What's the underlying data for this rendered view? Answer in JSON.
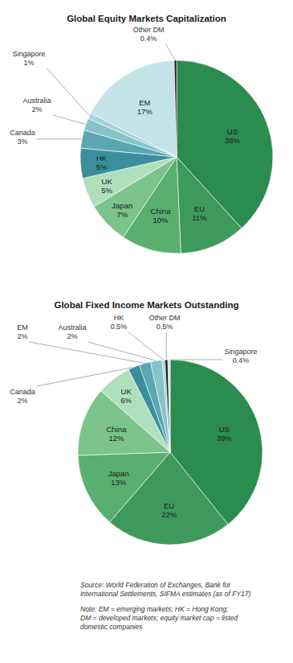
{
  "chart_data": [
    {
      "type": "pie",
      "title": "Global Equity Markets Capitalization",
      "categories": [
        "US",
        "EU",
        "China",
        "Japan",
        "UK",
        "HK",
        "Canada",
        "Australia",
        "Singapore",
        "EM",
        "Other DM"
      ],
      "values": [
        38,
        11,
        10,
        7,
        5,
        5,
        3,
        2,
        1,
        17,
        0.4
      ],
      "value_labels": [
        "38%",
        "11%",
        "10%",
        "7%",
        "5%",
        "5%",
        "3%",
        "2%",
        "1%",
        "17%",
        "0.4%"
      ],
      "colors": [
        "#2a8c4f",
        "#3d9a5c",
        "#5aae6f",
        "#7cc38c",
        "#b0e0bb",
        "#3b8f9c",
        "#5aa7b2",
        "#86c3cb",
        "#a8d3d8",
        "#c3e3e8",
        "#1d1d1d"
      ],
      "data_labels": true
    },
    {
      "type": "pie",
      "title": "Global Fixed Income Markets Outstanding",
      "categories": [
        "US",
        "EU",
        "Japan",
        "China",
        "UK",
        "Canada",
        "EM",
        "Australia",
        "HK",
        "Other DM",
        "Singapore"
      ],
      "values": [
        39,
        22,
        13,
        12,
        6,
        2,
        2,
        2,
        0.5,
        0.5,
        0.4
      ],
      "value_labels": [
        "39%",
        "22%",
        "13%",
        "12%",
        "6%",
        "2%",
        "2%",
        "2%",
        "0.5%",
        "0.5%",
        "0.4%"
      ],
      "colors": [
        "#2a8c4f",
        "#3d9a5c",
        "#5aae6f",
        "#7cc38c",
        "#b0e0bb",
        "#3b8f9c",
        "#5aa7b2",
        "#86c3cb",
        "#a8d3d8",
        "#1d1d1d",
        "#c3e3e8"
      ],
      "data_labels": true
    }
  ],
  "annotations": [
    [
      "Source: World Federation of Exchanges, Bank for",
      "International Settlements, SIFMA estimates (as of FY17)"
    ],
    [
      "Note: EM = emerging markets; HK = Hong Kong;",
      "DM = developed markets; equity market cap = listed",
      "domestic companies"
    ]
  ]
}
